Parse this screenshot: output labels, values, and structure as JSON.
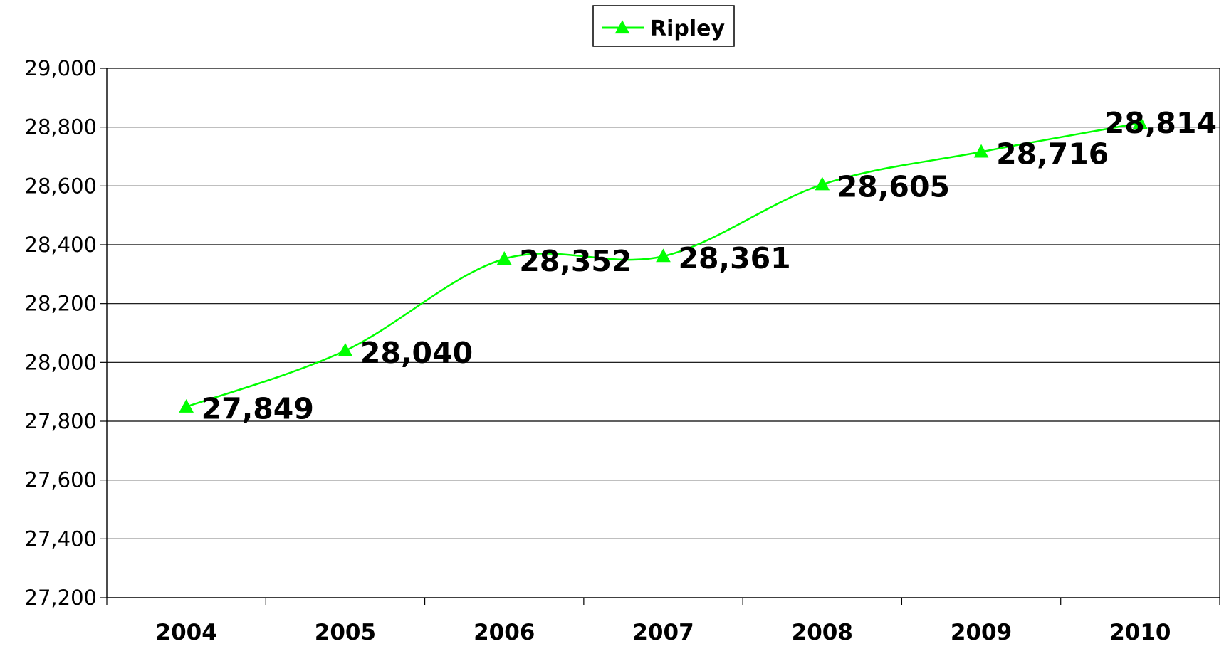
{
  "chart_data": {
    "type": "line",
    "categories": [
      "2004",
      "2005",
      "2006",
      "2007",
      "2008",
      "2009",
      "2010"
    ],
    "series": [
      {
        "name": "Ripley",
        "values": [
          27849,
          28040,
          28352,
          28361,
          28605,
          28716,
          28814
        ],
        "labels": [
          "27,849",
          "28,040",
          "28,352",
          "28,361",
          "28,605",
          "28,716",
          "28,814"
        ],
        "color": "#00ff00",
        "marker": "triangle",
        "smooth": true
      }
    ],
    "ylim": [
      27200,
      29000
    ],
    "yticks": [
      27200,
      27400,
      27600,
      27800,
      28000,
      28200,
      28400,
      28600,
      28800,
      29000
    ],
    "ytick_labels": [
      "27,200",
      "27,400",
      "27,600",
      "27,800",
      "28,000",
      "28,200",
      "28,400",
      "28,600",
      "28,800",
      "29,000"
    ],
    "grid": true,
    "legend": "top-center"
  }
}
